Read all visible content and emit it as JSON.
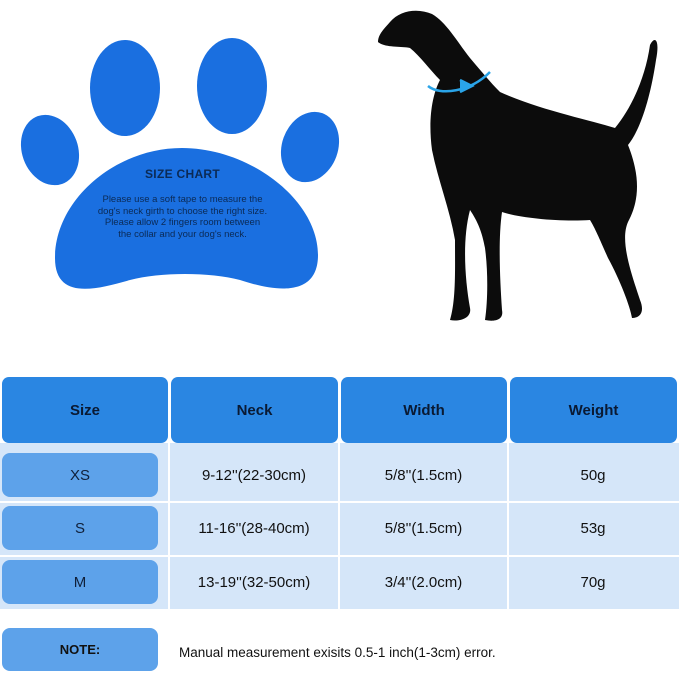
{
  "paw": {
    "title": "SIZE CHART",
    "lines": [
      "Please use a soft tape to measure the",
      "dog's neck girth to choose the right size.",
      "Please allow 2 fingers room between",
      "the collar and your dog's neck."
    ]
  },
  "colors": {
    "paw": "#1a6fe0",
    "header": "#2a86e2",
    "pill": "#5da2ea",
    "row_bg": "#d5e6f9",
    "collar_arrow": "#2aa4e8",
    "dog": "#0c0c0c"
  },
  "icons": {
    "paw": "paw-print",
    "dog": "dog-silhouette",
    "collar": "neck-measure-arrow"
  },
  "table": {
    "headers": [
      "Size",
      "Neck",
      "Width",
      "Weight"
    ],
    "rows": [
      [
        "XS",
        "9-12''(22-30cm)",
        "5/8''(1.5cm)",
        "50g"
      ],
      [
        "S",
        "11-16''(28-40cm)",
        "5/8''(1.5cm)",
        "53g"
      ],
      [
        "M",
        "13-19''(32-50cm)",
        "3/4''(2.0cm)",
        "70g"
      ]
    ]
  },
  "note": {
    "label": "NOTE:",
    "text": "Manual measurement exisits 0.5-1 inch(1-3cm) error."
  }
}
